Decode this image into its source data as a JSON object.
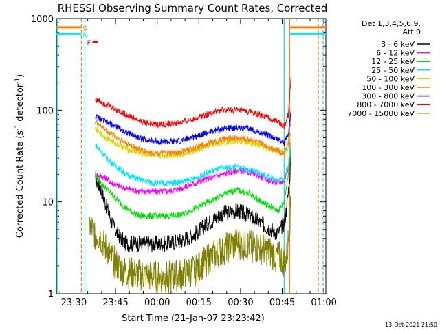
{
  "chart_data": {
    "type": "line",
    "title": "RHESSI Observing Summary Count Rates, Corrected",
    "xlabel": "Start Time (21-Jan-07 23:23:42)",
    "ylabel_main": "Corrected Count Rate (s",
    "ylabel_sup1": "-1",
    "ylabel_mid": " detector",
    "ylabel_sup2": "-1",
    "ylabel_end": ")",
    "yscale": "log",
    "ylim": [
      1,
      1000
    ],
    "x_unit": "minutes since 23:23:42",
    "xlim": [
      0,
      97
    ],
    "x_ticks": [
      {
        "t": 6.3,
        "label": "23:30"
      },
      {
        "t": 21.3,
        "label": "23:45"
      },
      {
        "t": 36.3,
        "label": "00:00"
      },
      {
        "t": 51.3,
        "label": "00:15"
      },
      {
        "t": 66.3,
        "label": "00:30"
      },
      {
        "t": 81.3,
        "label": "00:45"
      },
      {
        "t": 96.3,
        "label": "01:00"
      }
    ],
    "y_ticks": [
      {
        "v": 1,
        "label": "1"
      },
      {
        "v": 10,
        "label": "10"
      },
      {
        "v": 100,
        "label": "100"
      },
      {
        "v": 1000,
        "label": "1000"
      }
    ],
    "legend_header": [
      "Det 1,3,4,5,6,9,",
      "Att 0"
    ],
    "legend_position": "right",
    "flags": [
      {
        "label": "S",
        "color": "#ff8000",
        "t_start": 0,
        "t_end": 9,
        "t_start2": 84,
        "t_end2": 97,
        "level": 800
      },
      {
        "label": "N",
        "color": "#00e5ff",
        "t_start": 0,
        "t_end": 9,
        "t_start2": 84,
        "t_end2": 97,
        "level": 680
      },
      {
        "label": "F",
        "color": "#ff0000",
        "t_start": 13,
        "t_end": 15,
        "level": 560
      }
    ],
    "vlines": [
      {
        "t": 9.0,
        "color": "#ff8000",
        "style": "dashed"
      },
      {
        "t": 10.3,
        "color": "#00e5ff",
        "style": "dashed"
      },
      {
        "t": 82.0,
        "color": "#00e5ff",
        "style": "solid"
      },
      {
        "t": 84.0,
        "color": "#ff8000",
        "style": "solid"
      },
      {
        "t": 94.3,
        "color": "#ff8000",
        "style": "dashed"
      },
      {
        "t": 0.3,
        "color": "#00e5ff",
        "style": "solid"
      },
      {
        "t": 96.0,
        "color": "#00e5ff",
        "style": "dashed"
      }
    ],
    "series": [
      {
        "name": "3 - 6 keV",
        "color": "#000000",
        "points": [
          [
            14,
            18
          ],
          [
            16,
            14
          ],
          [
            18,
            9
          ],
          [
            20,
            6
          ],
          [
            22,
            4.5
          ],
          [
            25,
            3.5
          ],
          [
            30,
            3.5
          ],
          [
            35,
            3.5
          ],
          [
            40,
            3.5
          ],
          [
            45,
            3.8
          ],
          [
            50,
            4.5
          ],
          [
            55,
            6
          ],
          [
            60,
            7.5
          ],
          [
            65,
            8
          ],
          [
            70,
            7
          ],
          [
            75,
            5.5
          ],
          [
            80,
            4.5
          ],
          [
            82,
            6
          ],
          [
            83,
            9
          ],
          [
            83.8,
            16
          ],
          [
            84.5,
            30
          ]
        ]
      },
      {
        "name": "6 - 12 keV",
        "color": "#ff00ff",
        "points": [
          [
            14,
            20
          ],
          [
            16,
            19
          ],
          [
            18,
            18
          ],
          [
            20,
            16
          ],
          [
            25,
            14
          ],
          [
            30,
            13
          ],
          [
            35,
            13
          ],
          [
            40,
            13
          ],
          [
            45,
            14
          ],
          [
            50,
            16
          ],
          [
            55,
            18
          ],
          [
            60,
            20
          ],
          [
            65,
            22
          ],
          [
            70,
            21
          ],
          [
            75,
            18
          ],
          [
            80,
            16
          ],
          [
            82,
            17
          ],
          [
            83.5,
            24
          ],
          [
            84.5,
            45
          ]
        ]
      },
      {
        "name": "12 - 25 keV",
        "color": "#00e000",
        "points": [
          [
            14,
            20
          ],
          [
            16,
            16
          ],
          [
            18,
            14
          ],
          [
            20,
            12
          ],
          [
            25,
            8.5
          ],
          [
            30,
            7
          ],
          [
            35,
            7
          ],
          [
            40,
            7
          ],
          [
            45,
            7.2
          ],
          [
            50,
            8.5
          ],
          [
            55,
            10
          ],
          [
            60,
            12
          ],
          [
            65,
            13.5
          ],
          [
            70,
            12
          ],
          [
            75,
            9.5
          ],
          [
            80,
            8
          ],
          [
            82,
            10
          ],
          [
            83.5,
            20
          ],
          [
            84.5,
            40
          ]
        ]
      },
      {
        "name": "25 - 50 keV",
        "color": "#00e5ff",
        "points": [
          [
            14,
            42
          ],
          [
            16,
            36
          ],
          [
            18,
            30
          ],
          [
            20,
            27
          ],
          [
            25,
            20
          ],
          [
            30,
            17.5
          ],
          [
            35,
            16
          ],
          [
            40,
            16
          ],
          [
            45,
            16.5
          ],
          [
            50,
            18
          ],
          [
            55,
            21
          ],
          [
            60,
            23.5
          ],
          [
            65,
            24
          ],
          [
            70,
            22
          ],
          [
            75,
            19.5
          ],
          [
            80,
            17
          ],
          [
            82,
            18
          ],
          [
            83.5,
            25
          ],
          [
            84.5,
            45
          ]
        ]
      },
      {
        "name": "50 - 100 keV",
        "color": "#d8d800",
        "points": [
          [
            14,
            62
          ],
          [
            16,
            55
          ],
          [
            18,
            50
          ],
          [
            20,
            46
          ],
          [
            25,
            38
          ],
          [
            30,
            34
          ],
          [
            35,
            32
          ],
          [
            40,
            32
          ],
          [
            45,
            33
          ],
          [
            50,
            36
          ],
          [
            55,
            41
          ],
          [
            60,
            45
          ],
          [
            65,
            46
          ],
          [
            70,
            44
          ],
          [
            75,
            40
          ],
          [
            80,
            35
          ],
          [
            82,
            33
          ],
          [
            83.5,
            40
          ],
          [
            84.5,
            60
          ]
        ]
      },
      {
        "name": "100 - 300 keV",
        "color": "#ff8000",
        "points": [
          [
            14,
            75
          ],
          [
            16,
            68
          ],
          [
            18,
            60
          ],
          [
            20,
            55
          ],
          [
            25,
            44
          ],
          [
            30,
            37
          ],
          [
            35,
            34
          ],
          [
            40,
            34
          ],
          [
            45,
            35
          ],
          [
            50,
            39
          ],
          [
            55,
            44
          ],
          [
            60,
            48
          ],
          [
            65,
            50
          ],
          [
            70,
            48
          ],
          [
            75,
            42
          ],
          [
            80,
            36
          ],
          [
            82,
            34
          ],
          [
            83.5,
            45
          ],
          [
            84.5,
            80
          ]
        ]
      },
      {
        "name": "300 - 800 keV",
        "color": "#0000ff",
        "points": [
          [
            14,
            85
          ],
          [
            16,
            80
          ],
          [
            18,
            74
          ],
          [
            20,
            70
          ],
          [
            25,
            58
          ],
          [
            30,
            50
          ],
          [
            35,
            46
          ],
          [
            40,
            45
          ],
          [
            45,
            46
          ],
          [
            50,
            52
          ],
          [
            55,
            58
          ],
          [
            60,
            63
          ],
          [
            65,
            65
          ],
          [
            70,
            62
          ],
          [
            75,
            55
          ],
          [
            80,
            48
          ],
          [
            82,
            44
          ],
          [
            83.5,
            55
          ],
          [
            84.5,
            100
          ]
        ]
      },
      {
        "name": "800 - 7000 keV",
        "color": "#ff0000",
        "points": [
          [
            14,
            130
          ],
          [
            16,
            125
          ],
          [
            18,
            115
          ],
          [
            20,
            108
          ],
          [
            25,
            90
          ],
          [
            30,
            76
          ],
          [
            35,
            70
          ],
          [
            40,
            70
          ],
          [
            45,
            73
          ],
          [
            50,
            82
          ],
          [
            55,
            92
          ],
          [
            60,
            100
          ],
          [
            65,
            100
          ],
          [
            70,
            95
          ],
          [
            75,
            85
          ],
          [
            80,
            75
          ],
          [
            82,
            66
          ],
          [
            83.5,
            90
          ],
          [
            84.5,
            250
          ]
        ]
      },
      {
        "name": "7000 - 15000 keV",
        "color": "#808000",
        "points": [
          [
            12,
            5.5
          ],
          [
            14,
            4.5
          ],
          [
            16,
            4
          ],
          [
            18,
            3
          ],
          [
            20,
            2.4
          ],
          [
            22,
            2
          ],
          [
            25,
            1.7
          ],
          [
            30,
            1.6
          ],
          [
            35,
            1.5
          ],
          [
            40,
            1.5
          ],
          [
            45,
            1.6
          ],
          [
            50,
            1.8
          ],
          [
            55,
            2.4
          ],
          [
            60,
            3
          ],
          [
            65,
            3.5
          ],
          [
            70,
            3.3
          ],
          [
            75,
            3
          ],
          [
            80,
            2.5
          ],
          [
            82,
            2.2
          ],
          [
            83,
            2.5
          ],
          [
            84,
            6
          ],
          [
            84.5,
            10
          ]
        ]
      }
    ]
  },
  "footer_timestamp": "13-Oct-2021 21:50"
}
